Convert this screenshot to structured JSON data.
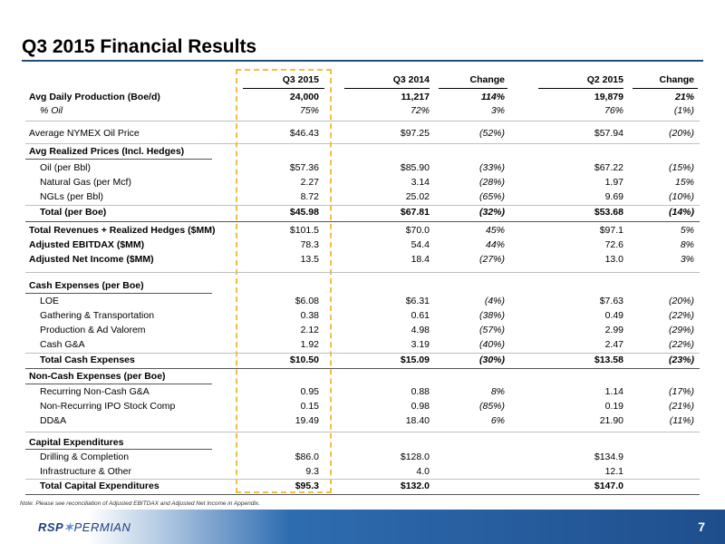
{
  "title": "Q3 2015 Financial Results",
  "columns": [
    "Q3 2015",
    "Q3 2014",
    "Change",
    "Q2 2015",
    "Change"
  ],
  "rows": [
    {
      "label": "Avg Daily Production (Boe/d)",
      "v": [
        "24,000",
        "11,217",
        "114%",
        "19,879",
        "21%"
      ]
    },
    {
      "label": "% Oil",
      "v": [
        "75%",
        "72%",
        "3%",
        "76%",
        "(1%)"
      ]
    },
    {
      "label": "Average NYMEX Oil Price",
      "v": [
        "$46.43",
        "$97.25",
        "(52%)",
        "$57.94",
        "(20%)"
      ]
    },
    {
      "label": "Avg Realized Prices (Incl. Hedges)",
      "v": [
        "",
        "",
        "",
        "",
        ""
      ]
    },
    {
      "label": "Oil (per Bbl)",
      "v": [
        "$57.36",
        "$85.90",
        "(33%)",
        "$67.22",
        "(15%)"
      ]
    },
    {
      "label": "Natural Gas (per Mcf)",
      "v": [
        "2.27",
        "3.14",
        "(28%)",
        "1.97",
        "15%"
      ]
    },
    {
      "label": "NGLs (per Bbl)",
      "v": [
        "8.72",
        "25.02",
        "(65%)",
        "9.69",
        "(10%)"
      ]
    },
    {
      "label": "Total (per Boe)",
      "v": [
        "$45.98",
        "$67.81",
        "(32%)",
        "$53.68",
        "(14%)"
      ]
    },
    {
      "label": "Total Revenues + Realized Hedges ($MM)",
      "v": [
        "$101.5",
        "$70.0",
        "45%",
        "$97.1",
        "5%"
      ]
    },
    {
      "label": "Adjusted EBITDAX ($MM)",
      "v": [
        "78.3",
        "54.4",
        "44%",
        "72.6",
        "8%"
      ]
    },
    {
      "label": "Adjusted Net Income ($MM)",
      "v": [
        "13.5",
        "18.4",
        "(27%)",
        "13.0",
        "3%"
      ]
    },
    {
      "label": "Cash Expenses (per Boe)",
      "v": [
        "",
        "",
        "",
        "",
        ""
      ]
    },
    {
      "label": "LOE",
      "v": [
        "$6.08",
        "$6.31",
        "(4%)",
        "$7.63",
        "(20%)"
      ]
    },
    {
      "label": "Gathering & Transportation",
      "v": [
        "0.38",
        "0.61",
        "(38%)",
        "0.49",
        "(22%)"
      ]
    },
    {
      "label": "Production & Ad Valorem",
      "v": [
        "2.12",
        "4.98",
        "(57%)",
        "2.99",
        "(29%)"
      ]
    },
    {
      "label": "Cash G&A",
      "v": [
        "1.92",
        "3.19",
        "(40%)",
        "2.47",
        "(22%)"
      ]
    },
    {
      "label": "Total Cash Expenses",
      "v": [
        "$10.50",
        "$15.09",
        "(30%)",
        "$13.58",
        "(23%)"
      ]
    },
    {
      "label": "Non-Cash Expenses (per Boe)",
      "v": [
        "",
        "",
        "",
        "",
        ""
      ]
    },
    {
      "label": "Recurring Non-Cash G&A",
      "v": [
        "0.95",
        "0.88",
        "8%",
        "1.14",
        "(17%)"
      ]
    },
    {
      "label": "Non-Recurring IPO Stock Comp",
      "v": [
        "0.15",
        "0.98",
        "(85%)",
        "0.19",
        "(21%)"
      ]
    },
    {
      "label": "DD&A",
      "v": [
        "19.49",
        "18.40",
        "6%",
        "21.90",
        "(11%)"
      ]
    },
    {
      "label": "Capital Expenditures",
      "v": [
        "",
        "",
        "",
        "",
        ""
      ]
    },
    {
      "label": "Drilling & Completion",
      "v": [
        "$86.0",
        "$128.0",
        "",
        "$134.9",
        ""
      ]
    },
    {
      "label": "Infrastructure & Other",
      "v": [
        "9.3",
        "4.0",
        "",
        "12.1",
        ""
      ]
    },
    {
      "label": "Total Capital Expenditures",
      "v": [
        "$95.3",
        "$132.0",
        "",
        "$147.0",
        ""
      ]
    }
  ],
  "note": "Note: Please see reconciliation of Adjusted EBITDAX and Adjusted Net Income in Appendix.",
  "footer": {
    "logo_rsp": "RSP",
    "logo_permian": "PERMIAN",
    "page_number": "7"
  },
  "colors": {
    "title_rule": "#1f4e79",
    "highlight_box": "#f0c040",
    "footer_blue": "#1f4e8c"
  }
}
